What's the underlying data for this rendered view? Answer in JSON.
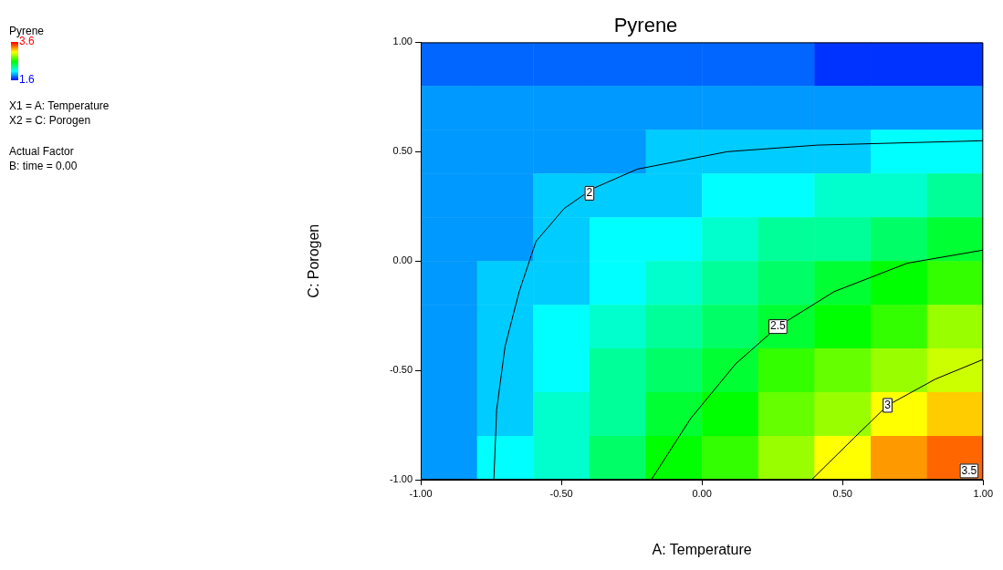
{
  "chart_data": {
    "type": "heatmap",
    "title": "Pyrene",
    "xlabel": "A: Temperature",
    "ylabel": "C: Porogen",
    "clabel": "Pyrene",
    "xlim": [
      -1,
      1
    ],
    "ylim": [
      -1,
      1
    ],
    "xticks": [
      {
        "value": -1,
        "label": "-1.00"
      },
      {
        "value": -0.5,
        "label": "-0.50"
      },
      {
        "value": 0,
        "label": "0.00"
      },
      {
        "value": 0.5,
        "label": "0.50"
      },
      {
        "value": 1,
        "label": "1.00"
      }
    ],
    "yticks": [
      {
        "value": -1,
        "label": "-1.00"
      },
      {
        "value": -0.5,
        "label": "-0.50"
      },
      {
        "value": 0,
        "label": "0.00"
      },
      {
        "value": 0.5,
        "label": "0.50"
      },
      {
        "value": 1,
        "label": "1.00"
      }
    ],
    "clim": [
      1.6,
      3.6
    ],
    "cticks": [
      1.6,
      3.6
    ],
    "cells": [
      [
        1.8,
        1.8,
        1.8,
        1.8,
        1.8,
        1.8,
        1.8,
        1.7,
        1.7,
        1.7
      ],
      [
        1.9,
        1.9,
        1.9,
        1.9,
        1.9,
        1.9,
        1.9,
        1.9,
        1.9,
        1.9
      ],
      [
        1.9,
        1.9,
        1.9,
        1.9,
        2.0,
        2.0,
        2.0,
        2.0,
        2.1,
        2.1
      ],
      [
        1.9,
        1.9,
        2.0,
        2.0,
        2.0,
        2.1,
        2.1,
        2.2,
        2.2,
        2.3
      ],
      [
        1.9,
        1.9,
        2.0,
        2.1,
        2.1,
        2.2,
        2.3,
        2.3,
        2.4,
        2.5
      ],
      [
        1.9,
        2.0,
        2.0,
        2.1,
        2.2,
        2.3,
        2.4,
        2.5,
        2.6,
        2.7
      ],
      [
        1.9,
        2.0,
        2.1,
        2.2,
        2.3,
        2.4,
        2.5,
        2.6,
        2.7,
        2.9
      ],
      [
        1.9,
        2.0,
        2.1,
        2.3,
        2.4,
        2.5,
        2.7,
        2.8,
        2.9,
        3.0
      ],
      [
        1.9,
        2.0,
        2.2,
        2.3,
        2.5,
        2.6,
        2.8,
        2.9,
        3.1,
        3.2
      ],
      [
        1.9,
        2.1,
        2.2,
        2.4,
        2.6,
        2.7,
        2.9,
        3.1,
        3.3,
        3.4
      ]
    ],
    "series": [
      {
        "type": "line",
        "color": "#000000",
        "x": [
          -0.74,
          -0.73,
          -0.7,
          -0.65,
          -0.59,
          -0.49,
          -0.39,
          -0.23,
          0.09,
          0.41,
          1.0
        ],
        "values": [
          -1.0,
          -0.68,
          -0.39,
          -0.14,
          0.09,
          0.24,
          0.33,
          0.42,
          0.5,
          0.53,
          0.55
        ]
      },
      {
        "type": "line",
        "color": "#000000",
        "x": [
          -0.18,
          -0.04,
          0.12,
          0.27,
          0.47,
          0.73,
          1.0
        ],
        "values": [
          -1.0,
          -0.72,
          -0.47,
          -0.3,
          -0.14,
          -0.01,
          0.05
        ]
      },
      {
        "type": "line",
        "color": "#000000",
        "x": [
          0.39,
          0.54,
          0.66,
          0.83,
          1.0
        ],
        "values": [
          -1.0,
          -0.81,
          -0.66,
          -0.54,
          -0.45
        ]
      }
    ],
    "annotations": [
      "X1 = A: Temperature",
      "X2 = C: Porogen",
      "Actual Factor",
      "B: time = 0.00",
      {
        "text": "2",
        "x": -0.4,
        "y": 0.31
      },
      {
        "text": "2.5",
        "x": 0.27,
        "y": -0.3
      },
      {
        "text": "3",
        "x": 0.66,
        "y": -0.66
      },
      {
        "text": "3.5",
        "x": 0.95,
        "y": -0.96
      }
    ]
  }
}
